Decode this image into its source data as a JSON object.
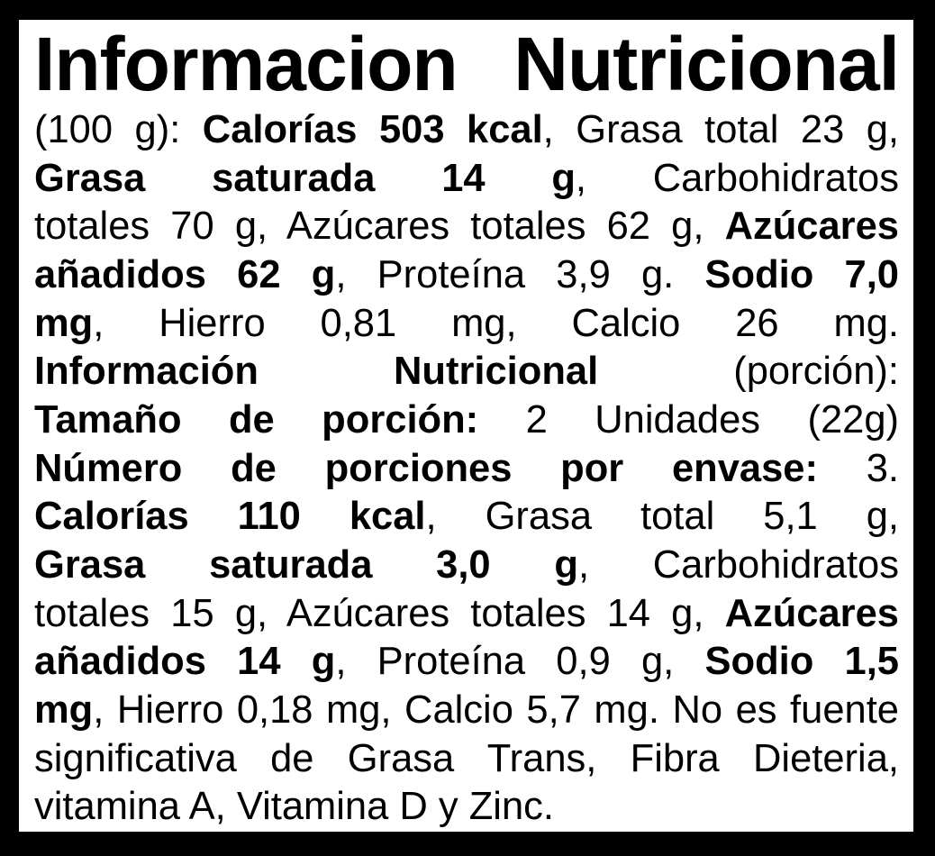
{
  "colors": {
    "background": "#000000",
    "panel": "#ffffff",
    "text": "#000000"
  },
  "label": {
    "title": "Informacion Nutricional",
    "lines": [
      {
        "justify": true,
        "segments": [
          {
            "text": "(100 g): ",
            "bold": false
          },
          {
            "text": "Calorías 503 kcal",
            "bold": true
          },
          {
            "text": ", Grasa total 23 g,",
            "bold": false
          }
        ]
      },
      {
        "justify": true,
        "segments": [
          {
            "text": "Grasa saturada 14 g",
            "bold": true
          },
          {
            "text": ", Carbohidratos",
            "bold": false
          }
        ]
      },
      {
        "justify": true,
        "segments": [
          {
            "text": "totales 70 g, Azúcares totales 62 g, ",
            "bold": false
          },
          {
            "text": "Azúcares",
            "bold": true
          }
        ]
      },
      {
        "justify": true,
        "segments": [
          {
            "text": "añadidos 62 g",
            "bold": true
          },
          {
            "text": ", Proteína 3,9 g. ",
            "bold": false
          },
          {
            "text": "Sodio 7,0",
            "bold": true
          }
        ]
      },
      {
        "justify": true,
        "segments": [
          {
            "text": "mg",
            "bold": true
          },
          {
            "text": ", Hierro 0,81 mg, Calcio 26 mg.",
            "bold": false
          }
        ]
      },
      {
        "justify": true,
        "segments": [
          {
            "text": "Información Nutricional",
            "bold": true
          },
          {
            "text": " (porción):",
            "bold": false
          }
        ]
      },
      {
        "justify": true,
        "segments": [
          {
            "text": "Tamaño de porción:",
            "bold": true
          },
          {
            "text": " 2 Unidades (22g)",
            "bold": false
          }
        ]
      },
      {
        "justify": true,
        "segments": [
          {
            "text": "Número de porciones por envase:",
            "bold": true
          },
          {
            "text": " 3.",
            "bold": false
          }
        ]
      },
      {
        "justify": true,
        "segments": [
          {
            "text": "Calorías 110 kcal",
            "bold": true
          },
          {
            "text": ", Grasa total 5,1 g,",
            "bold": false
          }
        ]
      },
      {
        "justify": true,
        "segments": [
          {
            "text": "Grasa saturada 3,0 g",
            "bold": true
          },
          {
            "text": ", Carbohidratos",
            "bold": false
          }
        ]
      },
      {
        "justify": true,
        "segments": [
          {
            "text": "totales 15 g, Azúcares totales 14 g, ",
            "bold": false
          },
          {
            "text": "Azúcares",
            "bold": true
          }
        ]
      },
      {
        "justify": true,
        "segments": [
          {
            "text": "añadidos 14 g",
            "bold": true
          },
          {
            "text": ", Proteína 0,9 g, ",
            "bold": false
          },
          {
            "text": "Sodio 1,5",
            "bold": true
          }
        ]
      },
      {
        "justify": true,
        "segments": [
          {
            "text": "mg",
            "bold": true
          },
          {
            "text": ", Hierro 0,18 mg, Calcio 5,7 mg. No es fuente",
            "bold": false
          }
        ]
      },
      {
        "justify": true,
        "segments": [
          {
            "text": "significativa de Grasa Trans, Fibra Dieteria,",
            "bold": false
          }
        ]
      },
      {
        "justify": false,
        "segments": [
          {
            "text": "vitamina A, Vitamina D y Zinc.",
            "bold": false
          }
        ]
      }
    ]
  }
}
